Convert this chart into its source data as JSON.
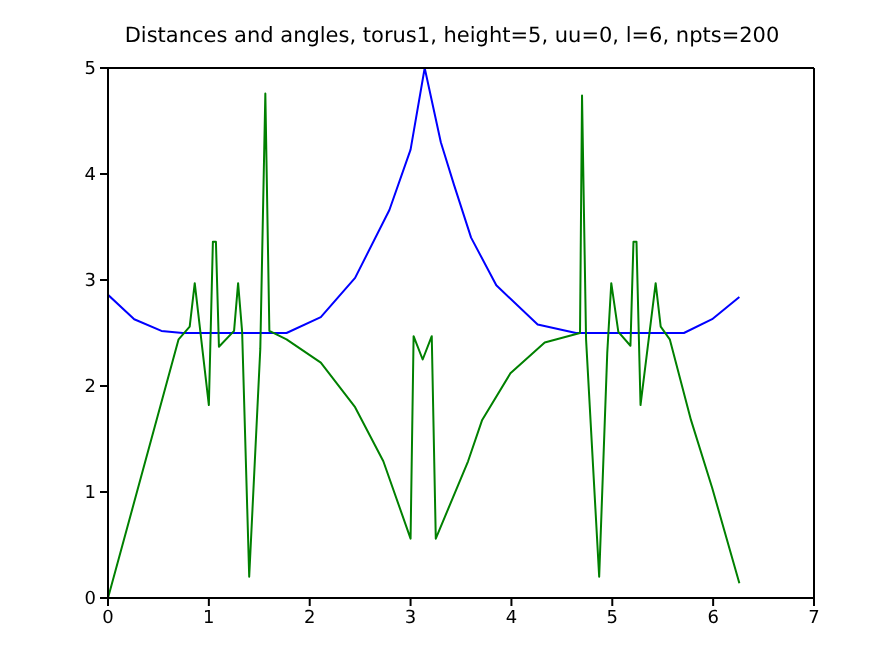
{
  "chart_data": {
    "type": "line",
    "title": "Distances and angles, torus1, height=5, uu=0, l=6, npts=200",
    "xlim": [
      0,
      7
    ],
    "xticks": [
      0,
      1,
      2,
      3,
      4,
      5,
      6,
      7
    ],
    "ylim": [
      0,
      5
    ],
    "yticks": [
      0,
      1,
      2,
      3,
      4,
      5
    ],
    "grid": false,
    "legend": false,
    "marker": "none",
    "line_style": "solid",
    "series": [
      {
        "color": "#0000ff",
        "x": [
          0,
          0.26,
          0.53,
          0.74,
          1.77,
          2.11,
          2.45,
          2.79,
          3.0,
          3.14,
          3.3,
          3.43,
          3.6,
          3.85,
          4.26,
          4.64,
          5.71,
          5.99,
          6.26
        ],
        "values": [
          2.86,
          2.63,
          2.52,
          2.5,
          2.5,
          2.65,
          3.02,
          3.66,
          4.23,
          5.0,
          4.3,
          3.9,
          3.4,
          2.95,
          2.58,
          2.5,
          2.5,
          2.63,
          2.84
        ]
      },
      {
        "color": "#008000",
        "x": [
          0,
          0.7,
          0.81,
          0.86,
          1.0,
          1.04,
          1.07,
          1.1,
          1.25,
          1.29,
          1.33,
          1.4,
          1.51,
          1.56,
          1.6,
          1.77,
          2.11,
          2.45,
          2.73,
          3.0,
          3.03,
          3.12,
          3.21,
          3.25,
          3.57,
          3.71,
          3.99,
          4.33,
          4.68,
          4.7,
          4.74,
          4.87,
          4.95,
          4.99,
          5.06,
          5.18,
          5.21,
          5.24,
          5.28,
          5.43,
          5.48,
          5.57,
          5.78,
          5.99,
          6.26
        ],
        "values": [
          0,
          2.44,
          2.56,
          2.97,
          1.82,
          3.36,
          3.36,
          2.37,
          2.52,
          2.97,
          2.51,
          0.2,
          2.35,
          4.76,
          2.52,
          2.44,
          2.22,
          1.8,
          1.29,
          0.56,
          2.47,
          2.25,
          2.47,
          0.56,
          1.29,
          1.68,
          2.12,
          2.41,
          2.5,
          4.74,
          2.44,
          0.2,
          2.31,
          2.97,
          2.51,
          2.38,
          3.36,
          3.36,
          1.82,
          2.97,
          2.56,
          2.44,
          1.68,
          1.04,
          0.14
        ]
      }
    ]
  }
}
